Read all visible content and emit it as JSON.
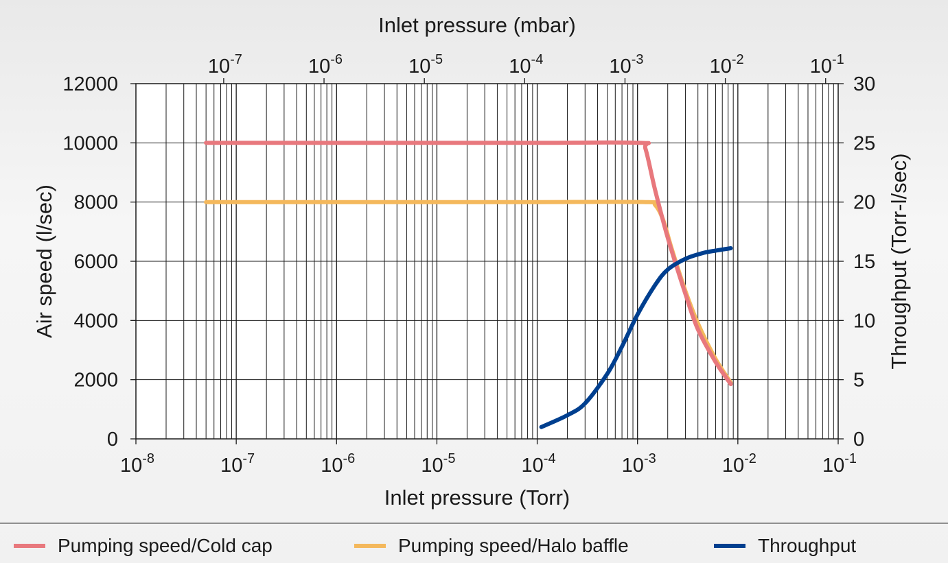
{
  "chart_data": {
    "type": "line",
    "title": "",
    "xlabel": "Inlet pressure (Torr)",
    "x2label": "Inlet pressure (mbar)",
    "ylabel": "Air speed (l/sec)",
    "y2label": "Throughput (Torr-l/sec)",
    "x_scale": "log",
    "xlim": [
      1e-08,
      0.1
    ],
    "ylim": [
      0,
      12000
    ],
    "y2lim": [
      0,
      30
    ],
    "x_tick_exponents": [
      "-8",
      "-7",
      "-6",
      "-5",
      "-4",
      "-3",
      "-2",
      "-1"
    ],
    "x2_tick_exponents": [
      "-7",
      "-6",
      "-5",
      "-4",
      "-3",
      "-2",
      "-1"
    ],
    "x2_ticks_torr": [
      7.5e-08,
      7.5e-07,
      7.5e-06,
      7.5e-05,
      0.00075,
      0.0075,
      0.075
    ],
    "tick_base": "10",
    "y_ticks": [
      "0",
      "2000",
      "4000",
      "6000",
      "8000",
      "10000",
      "12000"
    ],
    "y2_ticks": [
      "0",
      "5",
      "10",
      "15",
      "20",
      "25",
      "30"
    ],
    "grid": true,
    "legend_position": "bottom",
    "series": [
      {
        "name": "Pumping speed/Cold cap",
        "axis": "left",
        "color": "#e8787d",
        "x": [
          5e-08,
          1e-07,
          1e-06,
          1e-05,
          0.0001,
          0.00105,
          0.0012,
          0.0015,
          0.002,
          0.003,
          0.004,
          0.006,
          0.0085
        ],
        "y": [
          10000,
          10000,
          10000,
          10000,
          10000,
          10000,
          9800,
          8400,
          6800,
          4900,
          3700,
          2600,
          1850
        ]
      },
      {
        "name": "Pumping speed/Halo baffle",
        "axis": "left",
        "color": "#f4b85c",
        "x": [
          5e-08,
          1e-07,
          1e-06,
          1e-05,
          0.0001,
          0.0012,
          0.0015,
          0.0018,
          0.0022,
          0.003,
          0.004,
          0.006,
          0.0085
        ],
        "y": [
          8000,
          8000,
          8000,
          8000,
          8000,
          8000,
          7900,
          7400,
          6400,
          5000,
          3900,
          2700,
          1900
        ]
      },
      {
        "name": "Throughput",
        "axis": "right",
        "color": "#003f8f",
        "x": [
          0.00011,
          0.0002,
          0.0003,
          0.0005,
          0.0007,
          0.001,
          0.0015,
          0.002,
          0.003,
          0.0045,
          0.006,
          0.0085
        ],
        "y": [
          1.0,
          2.0,
          3.0,
          5.5,
          7.8,
          10.5,
          13.0,
          14.3,
          15.2,
          15.7,
          15.9,
          16.1
        ]
      }
    ]
  }
}
